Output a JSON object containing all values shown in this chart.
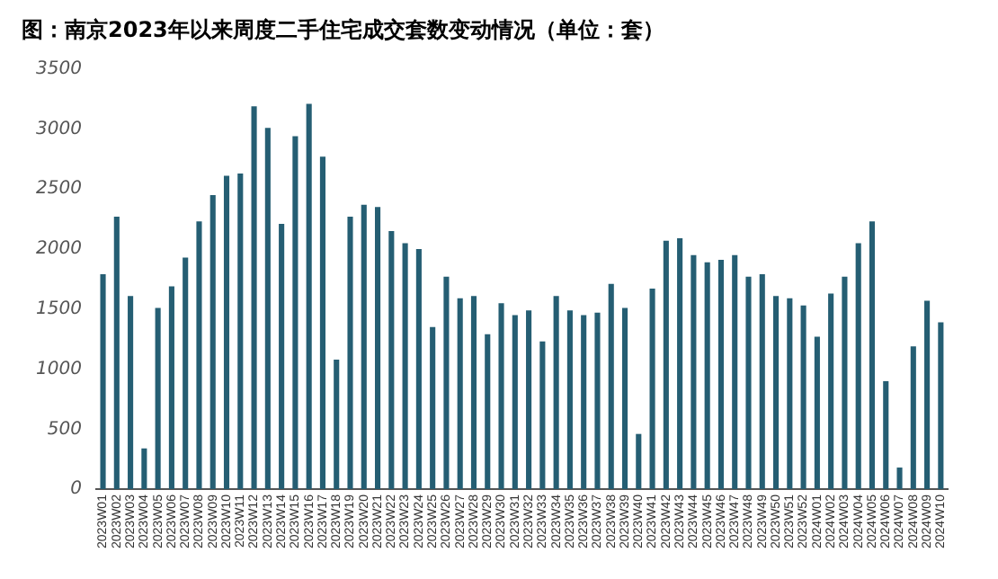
{
  "chart_data": {
    "type": "bar",
    "title": "图：南京2023年以来周度二手住宅成交套数变动情况（单位：套）",
    "categories": [
      "2023W01",
      "2023W02",
      "2023W03",
      "2023W04",
      "2023W05",
      "2023W06",
      "2023W07",
      "2023W08",
      "2023W09",
      "2023W10",
      "2023W11",
      "2023W12",
      "2023W13",
      "2023W14",
      "2023W15",
      "2023W16",
      "2023W17",
      "2023W18",
      "2023W19",
      "2023W20",
      "2023W21",
      "2023W22",
      "2023W23",
      "2023W24",
      "2023W25",
      "2023W26",
      "2023W27",
      "2023W28",
      "2023W29",
      "2023W30",
      "2023W31",
      "2023W32",
      "2023W33",
      "2023W34",
      "2023W35",
      "2023W36",
      "2023W37",
      "2023W38",
      "2023W39",
      "2023W40",
      "2023W41",
      "2023W42",
      "2023W43",
      "2023W44",
      "2023W45",
      "2023W46",
      "2023W47",
      "2023W48",
      "2023W49",
      "2023W50",
      "2023W51",
      "2023W52",
      "2024W01",
      "2024W02",
      "2024W03",
      "2024W04",
      "2024W05",
      "2024W06",
      "2024W07",
      "2024W08",
      "2024W09",
      "2024W10"
    ],
    "values": [
      1790,
      2270,
      1610,
      340,
      1510,
      1690,
      1930,
      2230,
      2450,
      2610,
      2630,
      3190,
      3010,
      2210,
      2940,
      3210,
      2770,
      1080,
      2270,
      2370,
      2350,
      2150,
      2050,
      2000,
      1350,
      1770,
      1590,
      1610,
      1290,
      1550,
      1450,
      1490,
      1230,
      1610,
      1490,
      1450,
      1470,
      1710,
      1510,
      460,
      1670,
      2070,
      2090,
      1950,
      1890,
      1910,
      1950,
      1770,
      1790,
      1610,
      1590,
      1530,
      1270,
      1630,
      1770,
      2050,
      2230,
      900,
      180,
      1190,
      1570,
      1390
    ],
    "color": "#255e73",
    "ylim": [
      0,
      3500
    ],
    "yticks": [
      0,
      500,
      1000,
      1500,
      2000,
      2500,
      3000,
      3500
    ],
    "grid": false,
    "legend": false
  }
}
